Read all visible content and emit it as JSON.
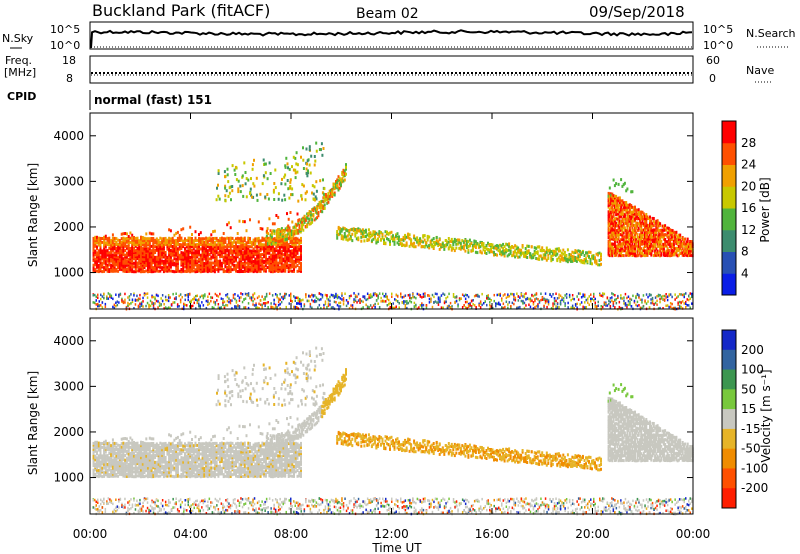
{
  "header": {
    "station": "Buckland Park (fitACF)",
    "beam": "Beam 02",
    "date": "09/Sep/2018"
  },
  "strips": {
    "nsky_label": "N.Sky",
    "nsky_top": "10^5",
    "nsky_bottom": "10^0",
    "nsearch_label": "N.Search",
    "nsearch_top": "10^5",
    "nsearch_bottom": "10^0",
    "freq_label_1": "Freq.",
    "freq_label_2": "[MHz]",
    "freq_top": "18",
    "freq_bottom": "8",
    "nave_label": "Nave",
    "nave_top": "60",
    "nave_bottom": "0",
    "cpid_label": "CPID",
    "cpid_value": "normal (fast) 151"
  },
  "chart_data": [
    {
      "type": "heatmap",
      "name": "power",
      "ylabel": "Slant Range [km]",
      "xlabel": "Time UT",
      "x_ticks": [
        "00:00",
        "04:00",
        "08:00",
        "12:00",
        "16:00",
        "20:00",
        "00:00"
      ],
      "y_ticks": [
        1000,
        2000,
        3000,
        4000
      ],
      "ylim": [
        200,
        4500
      ],
      "colorbar": {
        "label": "Power [dB]",
        "ticks": [
          "4",
          "8",
          "12",
          "16",
          "20",
          "24",
          "28"
        ],
        "colors": [
          "#0a1ee6",
          "#2850b4",
          "#3c8c6e",
          "#50b43c",
          "#c8c800",
          "#f0a000",
          "#ff5000",
          "#ff0000"
        ]
      }
    },
    {
      "type": "heatmap",
      "name": "velocity",
      "ylabel": "Slant Range [km]",
      "xlabel": "Time UT",
      "x_ticks": [
        "00:00",
        "04:00",
        "08:00",
        "12:00",
        "16:00",
        "20:00",
        "00:00"
      ],
      "y_ticks": [
        1000,
        2000,
        3000,
        4000
      ],
      "ylim": [
        200,
        4500
      ],
      "colorbar": {
        "label": "Velocity [m s⁻¹]",
        "ticks": [
          "200",
          "100",
          "50",
          "15",
          "-15",
          "-50",
          "-100",
          "-200"
        ],
        "colors": [
          "#1428c8",
          "#3264a0",
          "#3c9650",
          "#78c83c",
          "#c8c8c0",
          "#e6b428",
          "#f08c00",
          "#ff5000",
          "#ff1e00"
        ]
      }
    }
  ],
  "colors": {
    "ground_gray": "#c8c8c0",
    "axis": "#000000"
  }
}
